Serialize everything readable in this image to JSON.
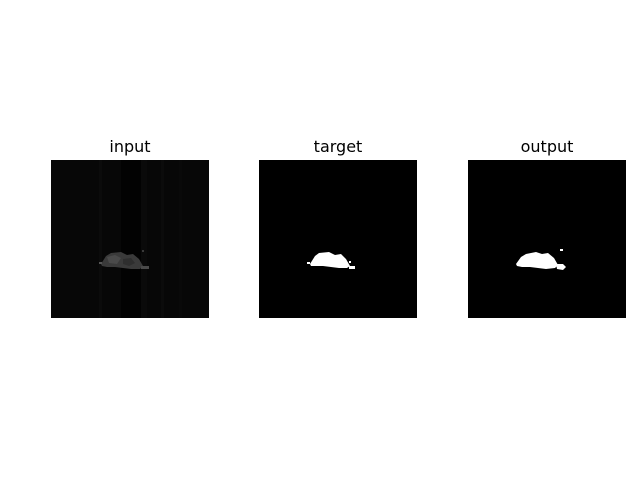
{
  "figure": {
    "panels": [
      {
        "id": "input",
        "title": "input"
      },
      {
        "id": "target",
        "title": "target"
      },
      {
        "id": "output",
        "title": "output"
      }
    ],
    "colors": {
      "background": "#ffffff",
      "image_background": "#000000",
      "input_background": "#070707",
      "input_blob": "#3a3a3a",
      "mask_foreground": "#ffffff"
    }
  }
}
